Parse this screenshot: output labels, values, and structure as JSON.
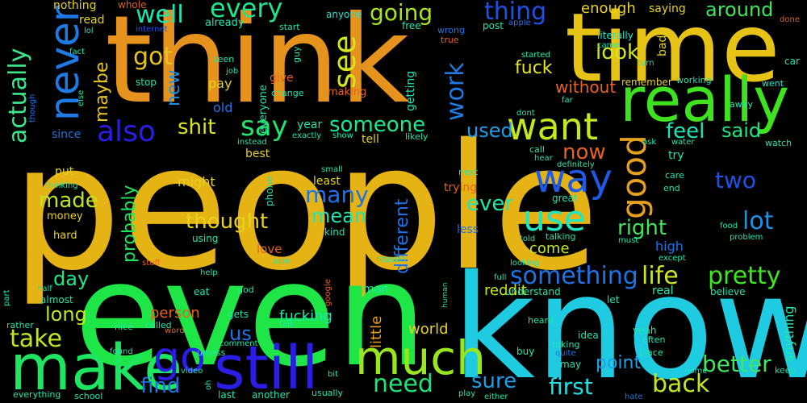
{
  "background": "#000000",
  "words": [
    {
      "text": "people",
      "color": "#e6b314"
    },
    {
      "text": "know",
      "color": "#1ecbe1"
    },
    {
      "text": "even",
      "color": "#1ee646"
    },
    {
      "text": "think",
      "color": "#e6931e"
    },
    {
      "text": "time",
      "color": "#e6c314"
    },
    {
      "text": "make",
      "color": "#1ee660"
    },
    {
      "text": "really",
      "color": "#3ee21e"
    },
    {
      "text": "still",
      "color": "#2a1ee6"
    },
    {
      "text": "much",
      "color": "#9ae61e"
    },
    {
      "text": "never",
      "color": "#1e7be6"
    },
    {
      "text": "want",
      "color": "#c6e61e"
    },
    {
      "text": "go",
      "color": "#2a1ee6"
    },
    {
      "text": "way",
      "color": "#1e5ae6"
    },
    {
      "text": "use",
      "color": "#1ee6c0"
    },
    {
      "text": "good",
      "color": "#e6a01e"
    },
    {
      "text": "going",
      "color": "#a6e61e"
    },
    {
      "text": "thing",
      "color": "#1e52e6"
    },
    {
      "text": "say",
      "color": "#1ee66e"
    },
    {
      "text": "also",
      "color": "#2a1ee6"
    },
    {
      "text": "see",
      "color": "#d2e61e"
    },
    {
      "text": "every",
      "color": "#1ee68c"
    },
    {
      "text": "well",
      "color": "#1ee6b0"
    },
    {
      "text": "got",
      "color": "#e6c31e"
    },
    {
      "text": "actually",
      "color": "#3ee68a"
    },
    {
      "text": "work",
      "color": "#1e7be6"
    },
    {
      "text": "life",
      "color": "#cde61e"
    },
    {
      "text": "pretty",
      "color": "#3ee61e"
    },
    {
      "text": "something",
      "color": "#1e73e6"
    },
    {
      "text": "made",
      "color": "#bfe61e"
    },
    {
      "text": "take",
      "color": "#c0e61e"
    },
    {
      "text": "need",
      "color": "#1ee676"
    },
    {
      "text": "back",
      "color": "#c8e61e"
    },
    {
      "text": "better",
      "color": "#3ee662"
    },
    {
      "text": "first",
      "color": "#1ee0e6"
    },
    {
      "text": "sure",
      "color": "#1e9ee6"
    },
    {
      "text": "find",
      "color": "#1e73e6"
    },
    {
      "text": "around",
      "color": "#3ee65a"
    },
    {
      "text": "look",
      "color": "#d2e61e"
    },
    {
      "text": "now",
      "color": "#e6621e"
    },
    {
      "text": "someone",
      "color": "#1ee68c"
    },
    {
      "text": "shit",
      "color": "#dce61e"
    },
    {
      "text": "feel",
      "color": "#1ee6b8"
    },
    {
      "text": "said",
      "color": "#1ee67e"
    },
    {
      "text": "lot",
      "color": "#1e90e6"
    },
    {
      "text": "many",
      "color": "#1e73e6"
    },
    {
      "text": "mean",
      "color": "#1ee6b0"
    },
    {
      "text": "thought",
      "color": "#e6d21e"
    },
    {
      "text": "right",
      "color": "#3ee65a"
    },
    {
      "text": "ever",
      "color": "#1ee6b0"
    },
    {
      "text": "probably",
      "color": "#1ee65a"
    },
    {
      "text": "different",
      "color": "#1e73e6"
    },
    {
      "text": "used",
      "color": "#1e9ee6"
    },
    {
      "text": "maybe",
      "color": "#e6c31e"
    },
    {
      "text": "new",
      "color": "#1e90e6"
    },
    {
      "text": "fuck",
      "color": "#e6e61e"
    },
    {
      "text": "without",
      "color": "#e6621e"
    },
    {
      "text": "enough",
      "color": "#e6d21e"
    },
    {
      "text": "two",
      "color": "#1e52e6"
    },
    {
      "text": "day",
      "color": "#1ee68c"
    },
    {
      "text": "long",
      "color": "#c0e61e"
    },
    {
      "text": "us",
      "color": "#1e73e6"
    },
    {
      "text": "world",
      "color": "#e6d21e"
    },
    {
      "text": "fucking",
      "color": "#1ee6b0"
    },
    {
      "text": "person",
      "color": "#e6621e"
    },
    {
      "text": "come",
      "color": "#c8e61e"
    },
    {
      "text": "reddit",
      "color": "#c8e61e"
    },
    {
      "text": "point",
      "color": "#1e9ee6"
    },
    {
      "text": "little",
      "color": "#e6a01e"
    },
    {
      "text": "anything",
      "color": "#1ee6b0"
    },
    {
      "text": "saying",
      "color": "#e6d21e"
    },
    {
      "text": "nothing",
      "color": "#e6d21e"
    },
    {
      "text": "whole",
      "color": "#e65a1e"
    },
    {
      "text": "read",
      "color": "#e6d21e"
    },
    {
      "text": "lol",
      "color": "#1ee6b0"
    },
    {
      "text": "internet",
      "color": "#1e52e6"
    },
    {
      "text": "already",
      "color": "#1ee6b0"
    },
    {
      "text": "anyone",
      "color": "#1ee6d2"
    },
    {
      "text": "free",
      "color": "#1ee6b0"
    },
    {
      "text": "wrong",
      "color": "#1e73e6"
    },
    {
      "text": "post",
      "color": "#1ee6b0"
    },
    {
      "text": "apple",
      "color": "#1e73e6"
    },
    {
      "text": "true",
      "color": "#e6621e"
    },
    {
      "text": "literally",
      "color": "#1ee6d2"
    },
    {
      "text": "came",
      "color": "#1ee6b0"
    },
    {
      "text": "done",
      "color": "#e6621e"
    },
    {
      "text": "car",
      "color": "#1ee6b0"
    },
    {
      "text": "fact",
      "color": "#1ee6b0"
    },
    {
      "text": "start",
      "color": "#1ee6b0"
    },
    {
      "text": "guy",
      "color": "#1ee6b0"
    },
    {
      "text": "started",
      "color": "#1ee6b0"
    },
    {
      "text": "turn",
      "color": "#1ee6b0"
    },
    {
      "text": "seen",
      "color": "#1ee6b0"
    },
    {
      "text": "job",
      "color": "#1ee6b0"
    },
    {
      "text": "bad",
      "color": "#e6d21e"
    },
    {
      "text": "went",
      "color": "#1ee6d2"
    },
    {
      "text": "else",
      "color": "#1ee6b0"
    },
    {
      "text": "stop",
      "color": "#1ee6b0"
    },
    {
      "text": "pay",
      "color": "#e6d21e"
    },
    {
      "text": "give",
      "color": "#e6621e"
    },
    {
      "text": "getting",
      "color": "#1ee6b0"
    },
    {
      "text": "remember",
      "color": "#e6d21e"
    },
    {
      "text": "working",
      "color": "#1ee6b0"
    },
    {
      "text": "change",
      "color": "#1ee6b0"
    },
    {
      "text": "making",
      "color": "#e6621e"
    },
    {
      "text": "far",
      "color": "#1ee6b0"
    },
    {
      "text": "away",
      "color": "#1ee6b0"
    },
    {
      "text": "though",
      "color": "#1e73e6"
    },
    {
      "text": "old",
      "color": "#1e73e6"
    },
    {
      "text": "everyone",
      "color": "#1ee6b0"
    },
    {
      "text": "dont",
      "color": "#1ee6b0"
    },
    {
      "text": "since",
      "color": "#1e73e6"
    },
    {
      "text": "year",
      "color": "#1ee6b0"
    },
    {
      "text": "exactly",
      "color": "#1ee6b0"
    },
    {
      "text": "show",
      "color": "#1ee6b0"
    },
    {
      "text": "tell",
      "color": "#e6d21e"
    },
    {
      "text": "likely",
      "color": "#1ee6b0"
    },
    {
      "text": "call",
      "color": "#1ee6b0"
    },
    {
      "text": "ask",
      "color": "#1ee6b0"
    },
    {
      "text": "water",
      "color": "#1ee6b0"
    },
    {
      "text": "watch",
      "color": "#1ee6b0"
    },
    {
      "text": "instead",
      "color": "#1ee6b0"
    },
    {
      "text": "best",
      "color": "#e6d21e"
    },
    {
      "text": "hear",
      "color": "#1ee6b0"
    },
    {
      "text": "definitely",
      "color": "#1ee6b0"
    },
    {
      "text": "try",
      "color": "#1ee6b0"
    },
    {
      "text": "small",
      "color": "#1ee6b0"
    },
    {
      "text": "next",
      "color": "#1ee6b0"
    },
    {
      "text": "care",
      "color": "#1ee6b0"
    },
    {
      "text": "end",
      "color": "#1ee6b0"
    },
    {
      "text": "thinking",
      "color": "#1ee6b0"
    },
    {
      "text": "phone",
      "color": "#1ee6b0"
    },
    {
      "text": "might",
      "color": "#e6d21e"
    },
    {
      "text": "least",
      "color": "#e6d21e"
    },
    {
      "text": "trying",
      "color": "#e6621e"
    },
    {
      "text": "great",
      "color": "#1ee6b0"
    },
    {
      "text": "put",
      "color": "#e6d21e"
    },
    {
      "text": "money",
      "color": "#e6d21e"
    },
    {
      "text": "food",
      "color": "#1ee6b0"
    },
    {
      "text": "hard",
      "color": "#e6d21e"
    },
    {
      "text": "using",
      "color": "#1ee6b0"
    },
    {
      "text": "kind",
      "color": "#1ee6b0"
    },
    {
      "text": "less",
      "color": "#1e73e6"
    },
    {
      "text": "told",
      "color": "#1ee6b0"
    },
    {
      "text": "talking",
      "color": "#1ee6b0"
    },
    {
      "text": "must",
      "color": "#1ee6b0"
    },
    {
      "text": "problem",
      "color": "#1ee6b0"
    },
    {
      "text": "high",
      "color": "#1e73e6"
    },
    {
      "text": "love",
      "color": "#e6621e"
    },
    {
      "text": "except",
      "color": "#1ee6b0"
    },
    {
      "text": "reason",
      "color": "#1ee6b0"
    },
    {
      "text": "stuff",
      "color": "#e6621e"
    },
    {
      "text": "able",
      "color": "#1ee6b0"
    },
    {
      "text": "looking",
      "color": "#1ee6b0"
    },
    {
      "text": "part",
      "color": "#1ee6b0"
    },
    {
      "text": "help",
      "color": "#1ee6b0"
    },
    {
      "text": "full",
      "color": "#1ee6b0"
    },
    {
      "text": "half",
      "color": "#1ee6b0"
    },
    {
      "text": "eat",
      "color": "#1ee6b0"
    },
    {
      "text": "god",
      "color": "#1ee6b0"
    },
    {
      "text": "google",
      "color": "#e6621e"
    },
    {
      "text": "man",
      "color": "#1ee6b0"
    },
    {
      "text": "understand",
      "color": "#1ee6b0"
    },
    {
      "text": "human",
      "color": "#1ee6b0"
    },
    {
      "text": "believe",
      "color": "#1ee6b0"
    },
    {
      "text": "almost",
      "color": "#1ee6b0"
    },
    {
      "text": "real",
      "color": "#1ee6b0"
    },
    {
      "text": "let",
      "color": "#1ee6b0"
    },
    {
      "text": "gets",
      "color": "#1ee6b0"
    },
    {
      "text": "rather",
      "color": "#1ee6b0"
    },
    {
      "text": "nice",
      "color": "#1ee6b0"
    },
    {
      "text": "called",
      "color": "#1ee6b0"
    },
    {
      "text": "talk",
      "color": "#1ee6b0"
    },
    {
      "text": "heard",
      "color": "#1ee6b0"
    },
    {
      "text": "yeah",
      "color": "#1ee6b0"
    },
    {
      "text": "word",
      "color": "#e6621e"
    },
    {
      "text": "idea",
      "color": "#1ee6b0"
    },
    {
      "text": "often",
      "color": "#1ee6b0"
    },
    {
      "text": "taking",
      "color": "#1ee6b0"
    },
    {
      "text": "found",
      "color": "#1ee6b0"
    },
    {
      "text": "unless",
      "color": "#1ee6b0"
    },
    {
      "text": "comment",
      "color": "#1ee6b0"
    },
    {
      "text": "buy",
      "color": "#1ee6b0"
    },
    {
      "text": "quite",
      "color": "#1e73e6"
    },
    {
      "text": "place",
      "color": "#1ee6b0"
    },
    {
      "text": "may",
      "color": "#1ee6b0"
    },
    {
      "text": "home",
      "color": "#1ee6b0"
    },
    {
      "text": "keep",
      "color": "#1ee6b0"
    },
    {
      "text": "video",
      "color": "#1ee6b0"
    },
    {
      "text": "oh",
      "color": "#1ee6b0"
    },
    {
      "text": "bit",
      "color": "#1ee6b0"
    },
    {
      "text": "everything",
      "color": "#1ee6b0"
    },
    {
      "text": "school",
      "color": "#1ee6b0"
    },
    {
      "text": "last",
      "color": "#1ee6b0"
    },
    {
      "text": "another",
      "color": "#1ee6b0"
    },
    {
      "text": "usually",
      "color": "#1ee6b0"
    },
    {
      "text": "play",
      "color": "#1ee6b0"
    },
    {
      "text": "either",
      "color": "#1ee6b0"
    },
    {
      "text": "hate",
      "color": "#1e73e6"
    }
  ]
}
